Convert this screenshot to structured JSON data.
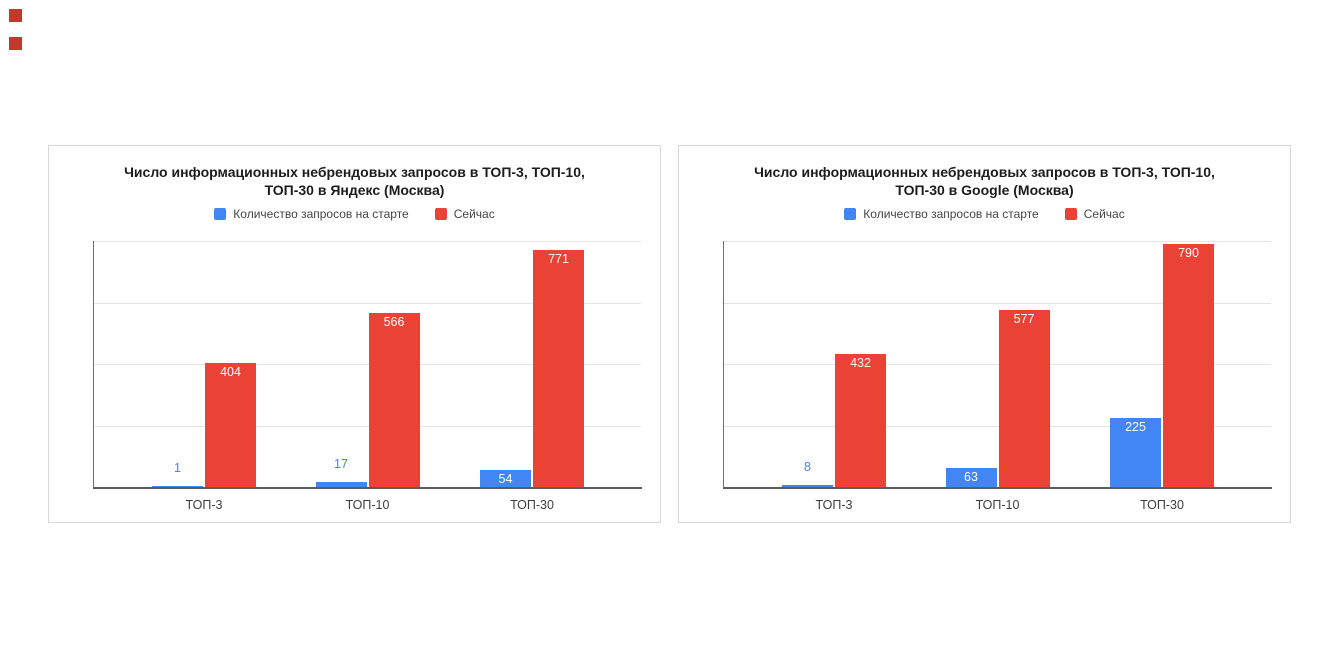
{
  "page": {
    "background_color": "#ffffff"
  },
  "corner_markers": {
    "color": "#c0392b",
    "count": 2
  },
  "chart_data": [
    {
      "type": "bar",
      "title": "Число информационных небрендовых запросов в ТОП-3, ТОП-10, ТОП-30 в Яндекс (Москва)",
      "title_lines": [
        "Число информационных небрендовых запросов в ТОП-3, ТОП-10,",
        "ТОП-30 в Яндекс (Москва)"
      ],
      "categories": [
        "ТОП-3",
        "ТОП-10",
        "ТОП-30"
      ],
      "series": [
        {
          "name": "Количество запросов на старте",
          "color": "#4285f4",
          "values": [
            1,
            17,
            54
          ]
        },
        {
          "name": "Сейчас",
          "color": "#ea4335",
          "values": [
            404,
            566,
            771
          ]
        }
      ],
      "ylim": [
        0,
        800
      ],
      "gridline_step": 200,
      "grid": true,
      "y_axis_tick_labels": false,
      "legend_position": "top",
      "data_labels": true
    },
    {
      "type": "bar",
      "title": "Число информационных небрендовых запросов в ТОП-3, ТОП-10, ТОП-30 в Google (Москва)",
      "title_lines": [
        "Число информационных небрендовых запросов в ТОП-3, ТОП-10,",
        "ТОП-30 в Google (Москва)"
      ],
      "categories": [
        "ТОП-3",
        "ТОП-10",
        "ТОП-30"
      ],
      "series": [
        {
          "name": "Количество запросов на старте",
          "color": "#4285f4",
          "values": [
            8,
            63,
            225
          ]
        },
        {
          "name": "Сейчас",
          "color": "#ea4335",
          "values": [
            432,
            577,
            790
          ]
        }
      ],
      "ylim": [
        0,
        800
      ],
      "gridline_step": 200,
      "grid": true,
      "y_axis_tick_labels": false,
      "legend_position": "top",
      "data_labels": true
    }
  ]
}
